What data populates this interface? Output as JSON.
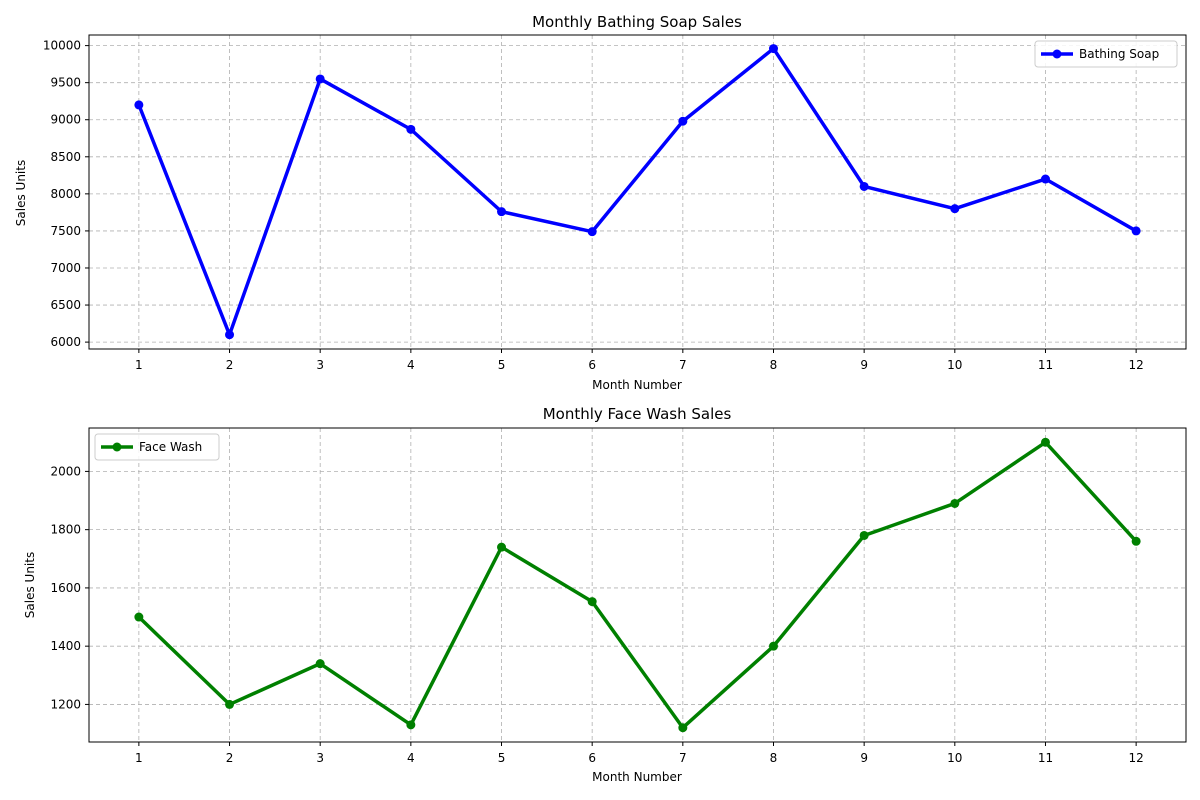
{
  "chart_data": [
    {
      "type": "line",
      "title": "Monthly Bathing Soap Sales",
      "xlabel": "Month Number",
      "ylabel": "Sales Units",
      "x": [
        1,
        2,
        3,
        4,
        5,
        6,
        7,
        8,
        9,
        10,
        11,
        12
      ],
      "xticks": [
        1,
        2,
        3,
        4,
        5,
        6,
        7,
        8,
        9,
        10,
        11,
        12
      ],
      "xlim": [
        0.45,
        12.55
      ],
      "yticks": [
        6000,
        6500,
        7000,
        7500,
        8000,
        8500,
        9000,
        9500,
        10000
      ],
      "ylim": [
        5907,
        10143
      ],
      "grid": true,
      "legend_position": "top-right",
      "series": [
        {
          "name": "Bathing Soap",
          "color": "#0000ff",
          "marker": "circle",
          "values": [
            9200,
            6100,
            9550,
            8870,
            7760,
            7490,
            8980,
            9960,
            8100,
            7800,
            8200,
            7500
          ]
        }
      ]
    },
    {
      "type": "line",
      "title": "Monthly Face Wash Sales",
      "xlabel": "Month Number",
      "ylabel": "Sales Units",
      "x": [
        1,
        2,
        3,
        4,
        5,
        6,
        7,
        8,
        9,
        10,
        11,
        12
      ],
      "xticks": [
        1,
        2,
        3,
        4,
        5,
        6,
        7,
        8,
        9,
        10,
        11,
        12
      ],
      "xlim": [
        0.45,
        12.55
      ],
      "yticks": [
        1200,
        1400,
        1600,
        1800,
        2000
      ],
      "ylim": [
        1071,
        2149
      ],
      "grid": true,
      "legend_position": "top-left",
      "series": [
        {
          "name": "Face Wash",
          "color": "#008000",
          "marker": "circle",
          "values": [
            1500,
            1200,
            1340,
            1130,
            1740,
            1553,
            1120,
            1400,
            1780,
            1890,
            2100,
            1760
          ]
        }
      ]
    }
  ]
}
